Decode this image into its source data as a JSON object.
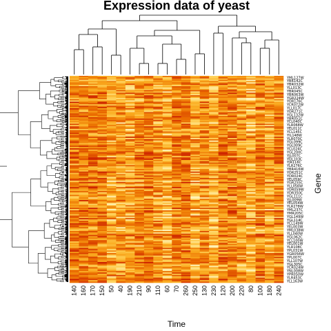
{
  "chart_data": {
    "type": "heatmap",
    "title": "Expression data of yeast",
    "xlabel": "Time",
    "ylabel": "Gene",
    "colormap": [
      "#ff0000",
      "#ffffc8"
    ],
    "x_categories": [
      "140",
      "160",
      "170",
      "150",
      "50",
      "40",
      "190",
      "210",
      "90",
      "110",
      "60",
      "70",
      "260",
      "250",
      "130",
      "230",
      "120",
      "200",
      "220",
      "80",
      "100",
      "180",
      "240"
    ],
    "row_labels": [
      "YML127W",
      "YBR142C",
      "YBR032W",
      "YLL013C",
      "YBR045C",
      "YBR063W",
      "YGR224W",
      "YOR176C",
      "YCR072W",
      "YLL017C",
      "YOR271C",
      "YGL132W",
      "YBR051C",
      "YCL040C",
      "YLR068W",
      "YEL011C",
      "YCL145C",
      "YIL148W",
      "YLR070C",
      "YGL099C",
      "YGL009C",
      "YCL024C",
      "YGL200C",
      "YJL007C",
      "YOL103C",
      "YJR116C",
      "YLR276C",
      "YBR416W",
      "YOR251C",
      "YDR024C",
      "YEL059C",
      "YGR255C",
      "YLL056W",
      "YOR059W",
      "YDR350C",
      "YGL111C",
      "YJL009W",
      "YEL054W",
      "YLR278W",
      "YML237C",
      "YMR205C",
      "YGL149W",
      "YGL114C",
      "YCL149W",
      "YEL003W",
      "YML038W",
      "YLL040W",
      "YGL062C",
      "YCL100W",
      "YEL001W",
      "YLR108C",
      "YPL031W",
      "YGR056W",
      "YPL007C",
      "YLL107W",
      "YGL305C",
      "YCR024W",
      "YNL008W",
      "YPR050W",
      "YLR453C",
      "YLL163W"
    ]
  }
}
